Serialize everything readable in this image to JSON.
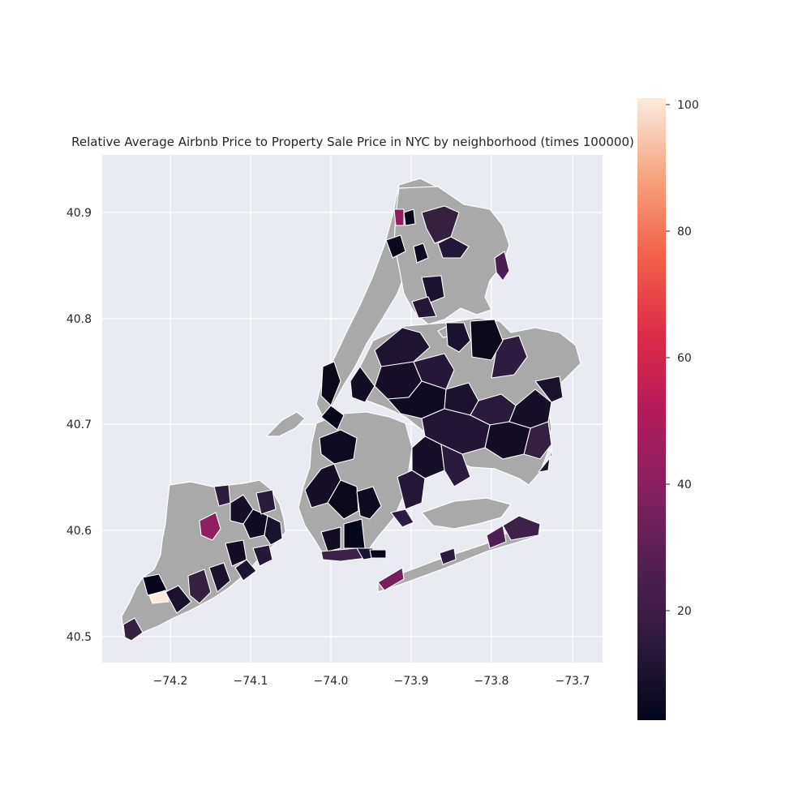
{
  "title": "Relative Average Airbnb Price to Property Sale Price in NYC by neighborhood (times 100000)",
  "x_ticks": [
    "−74.2",
    "−74.1",
    "−74.0",
    "−73.9",
    "−73.8",
    "−73.7"
  ],
  "y_ticks": [
    "40.9",
    "40.8",
    "40.7",
    "40.6",
    "40.5"
  ],
  "colorbar_ticks": [
    "100",
    "80",
    "60",
    "40",
    "20"
  ],
  "colorbar": {
    "min": 2,
    "max": 101,
    "colormap": "rocket"
  },
  "no_data_color": "#a9a9a9",
  "plot_background": "#eaeaf2",
  "chart_data": {
    "type": "choropleth",
    "x_ticks": [
      -74.2,
      -74.1,
      -74.0,
      -73.9,
      -73.8,
      -73.7
    ],
    "y_ticks": [
      40.9,
      40.8,
      40.7,
      40.6,
      40.5
    ],
    "xlim": [
      -74.285,
      -73.665
    ],
    "ylim": [
      40.472,
      40.95
    ],
    "value_range": [
      2,
      101
    ],
    "grid": true
  }
}
